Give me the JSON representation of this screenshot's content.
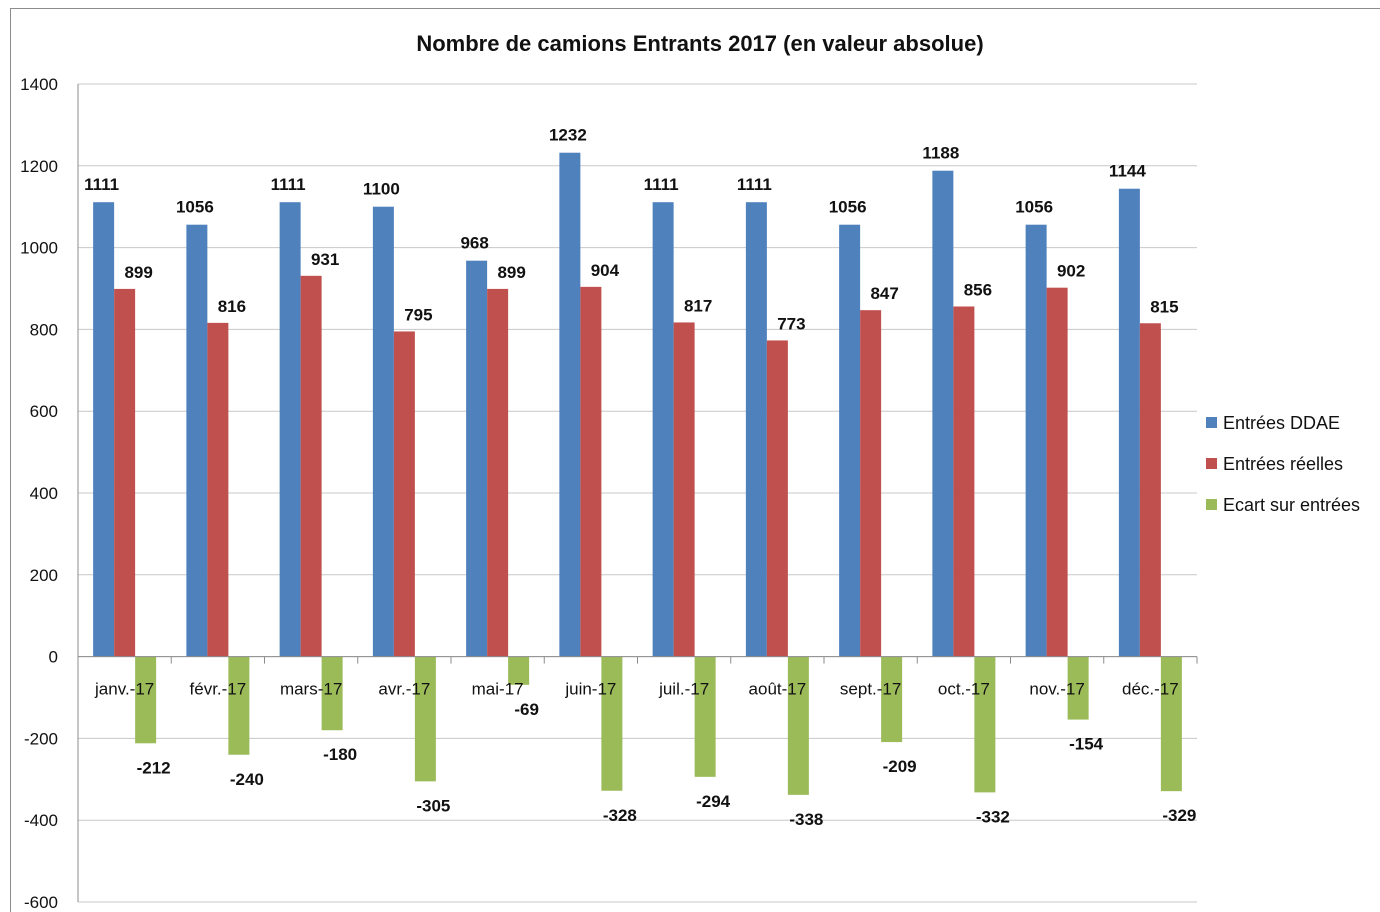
{
  "chart_data": {
    "type": "bar",
    "title": "Nombre de camions Entrants 2017 (en valeur absolue)",
    "categories": [
      "janv.-17",
      "févr.-17",
      "mars-17",
      "avr.-17",
      "mai-17",
      "juin-17",
      "juil.-17",
      "août-17",
      "sept.-17",
      "oct.-17",
      "nov.-17",
      "déc.-17"
    ],
    "series": [
      {
        "name": "Entrées DDAE",
        "color": "#4f81bd",
        "values": [
          1111,
          1056,
          1111,
          1100,
          968,
          1232,
          1111,
          1111,
          1056,
          1188,
          1056,
          1144
        ],
        "labels": [
          "1111",
          "1056",
          "1111",
          "1100",
          "968",
          "1232",
          "1111",
          "1111",
          "1056",
          "1188",
          "1056",
          "1144"
        ]
      },
      {
        "name": "Entrées réelles",
        "color": "#c0504d",
        "values": [
          899,
          816,
          931,
          795,
          899,
          904,
          817,
          773,
          847,
          856,
          902,
          815
        ],
        "labels": [
          "899",
          "816",
          "931",
          "795",
          "899",
          "904",
          "817",
          "773",
          "847",
          "856",
          "902",
          "815"
        ]
      },
      {
        "name": "Ecart sur entrées",
        "color": "#9bbb59",
        "values": [
          -212,
          -240,
          -180,
          -305,
          -69,
          -328,
          -294,
          -338,
          -209,
          -332,
          -154,
          -329
        ],
        "labels": [
          "-212",
          "-240",
          "-180",
          "-305",
          "-69",
          "-328",
          "-294",
          "-338",
          "-209",
          "-332",
          "-154",
          "-329"
        ]
      }
    ],
    "ylim": [
      -600,
      1400
    ],
    "yticks": [
      "1400",
      "1200",
      "1000",
      "800",
      "600",
      "400",
      "200",
      "0",
      "-200",
      "-400",
      "-600"
    ],
    "grid": true,
    "legend": "right"
  }
}
